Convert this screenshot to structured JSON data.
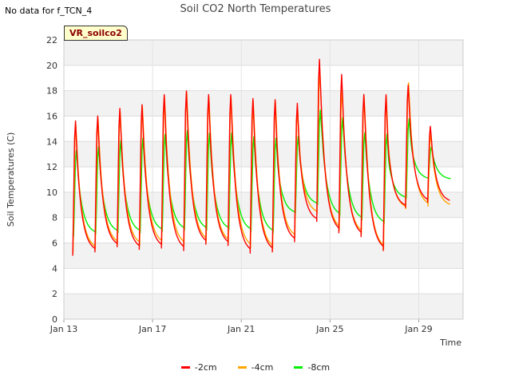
{
  "header": {
    "nodata": "No data for f_TCN_4",
    "title": "Soil CO2 North Temperatures"
  },
  "badge": "VR_soilco2",
  "chart_data": {
    "type": "line",
    "title": "Soil CO2 North Temperatures",
    "xlabel": "Time",
    "ylabel": "Soil Temperatures (C)",
    "x_ticks": [
      "Jan 13",
      "Jan 17",
      "Jan 21",
      "Jan 25",
      "Jan 29"
    ],
    "y_ticks": [
      0,
      2,
      4,
      6,
      8,
      10,
      12,
      14,
      16,
      18,
      20,
      22
    ],
    "ylim": [
      0,
      22
    ],
    "xlim_days": [
      13,
      31
    ],
    "grid": true,
    "legend_position": "bottom",
    "series": [
      {
        "name": "-2cm",
        "color": "#ff0000",
        "min": [
          5.0,
          5.3,
          5.7,
          5.5,
          5.6,
          5.4,
          5.9,
          5.8,
          5.2,
          5.3,
          6.1,
          7.7,
          6.8,
          6.5,
          5.4,
          8.8,
          9.2
        ],
        "max": [
          15.8,
          16.2,
          16.8,
          17.1,
          17.9,
          18.2,
          17.9,
          17.9,
          17.6,
          17.5,
          17.2,
          20.7,
          19.5,
          17.9,
          17.9,
          18.6,
          15.3
        ]
      },
      {
        "name": "-4cm",
        "color": "#ffa500",
        "min": [
          5.2,
          5.5,
          5.9,
          5.8,
          5.9,
          5.8,
          6.1,
          6.0,
          5.6,
          5.5,
          6.4,
          8.3,
          7.0,
          6.7,
          5.5,
          8.7,
          8.9
        ],
        "max": [
          15.5,
          16.0,
          16.5,
          17.0,
          17.7,
          18.1,
          17.7,
          17.7,
          17.4,
          17.3,
          16.8,
          19.7,
          18.3,
          17.7,
          17.7,
          18.8,
          14.7
        ]
      },
      {
        "name": "-8cm",
        "color": "#00ee00",
        "min": [
          6.5,
          6.7,
          6.8,
          6.8,
          6.9,
          7.0,
          7.0,
          7.0,
          6.9,
          6.8,
          8.3,
          9.0,
          8.1,
          7.8,
          7.5,
          9.5,
          11.0
        ],
        "max": [
          13.4,
          13.7,
          14.2,
          14.4,
          14.7,
          15.0,
          14.8,
          14.8,
          14.5,
          14.4,
          14.5,
          16.6,
          16.0,
          14.8,
          14.7,
          15.9,
          13.6
        ]
      }
    ]
  }
}
